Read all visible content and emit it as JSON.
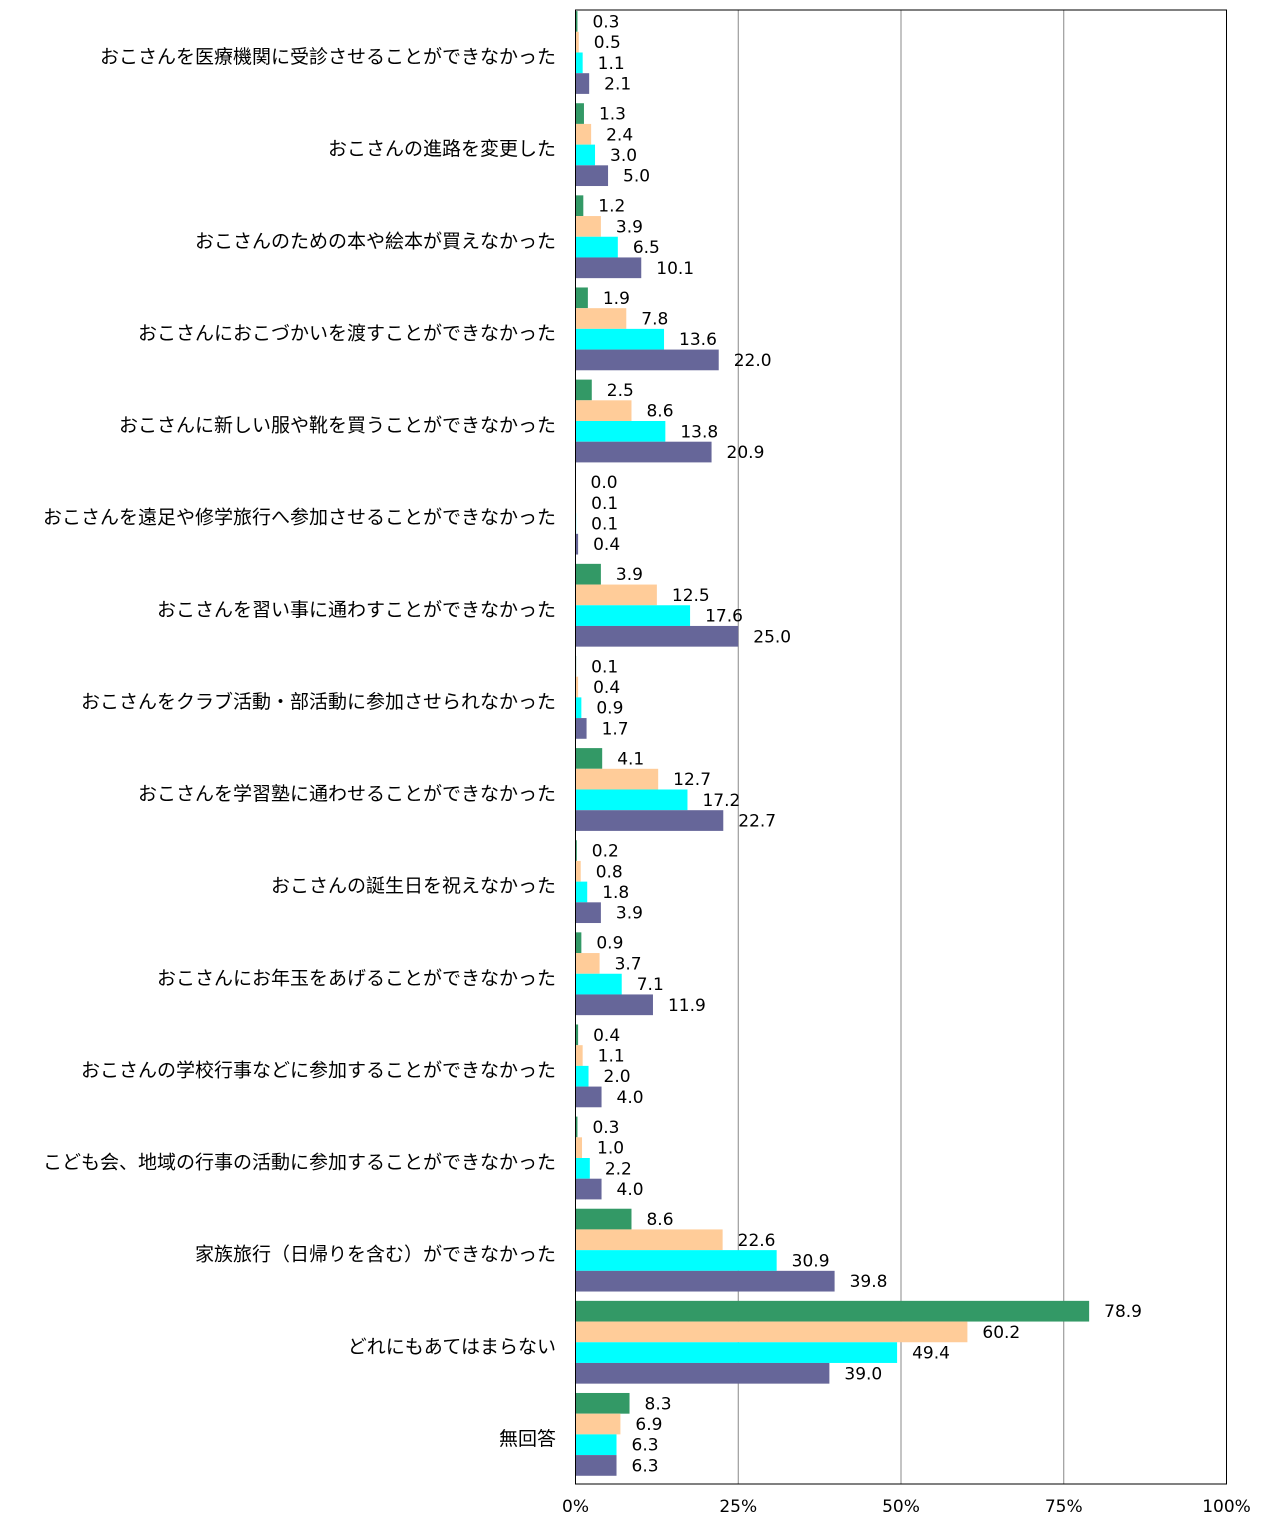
{
  "chart_data": {
    "type": "bar",
    "orientation": "horizontal",
    "categories": [
      "おこさんを医療機関に受診させることができなかった",
      "おこさんの進路を変更した",
      "おこさんのための本や絵本が買えなかった",
      "おこさんにおこづかいを渡すことができなかった",
      "おこさんに新しい服や靴を買うことができなかった",
      "おこさんを遠足や修学旅行へ参加させることができなかった",
      "おこさんを習い事に通わすことができなかった",
      "おこさんをクラブ活動・部活動に参加させられなかった",
      "おこさんを学習塾に通わせることができなかった",
      "おこさんの誕生日を祝えなかった",
      "おこさんにお年玉をあげることができなかった",
      "おこさんの学校行事などに参加することができなかった",
      "こども会、地域の行事の活動に参加することができなかった",
      "家族旅行（日帰りを含む）ができなかった",
      "どれにもあてはまらない",
      "無回答"
    ],
    "series": [
      {
        "color": "#339966",
        "values": [
          0.3,
          1.3,
          1.2,
          1.9,
          2.5,
          0.0,
          3.9,
          0.1,
          4.1,
          0.2,
          0.9,
          0.4,
          0.3,
          8.6,
          78.9,
          8.3
        ],
        "labels": [
          "0.3",
          "1.3",
          "1.2",
          "1.9",
          "2.5",
          "0.0",
          "3.9",
          "0.1",
          "4.1",
          "0.2",
          "0.9",
          "0.4",
          "0.3",
          "8.6",
          "78.9",
          "8.3"
        ]
      },
      {
        "color": "#FFCC99",
        "values": [
          0.5,
          2.4,
          3.9,
          7.8,
          8.6,
          0.1,
          12.5,
          0.4,
          12.7,
          0.8,
          3.7,
          1.1,
          1.0,
          22.6,
          60.2,
          6.9
        ],
        "labels": [
          "0.5",
          "2.4",
          "3.9",
          "7.8",
          "8.6",
          "0.1",
          "12.5",
          "0.4",
          "12.7",
          "0.8",
          "3.7",
          "1.1",
          "1.0",
          "22.6",
          "60.2",
          "6.9"
        ]
      },
      {
        "color": "#00FFFF",
        "values": [
          1.1,
          3.0,
          6.5,
          13.6,
          13.8,
          0.1,
          17.6,
          0.9,
          17.2,
          1.8,
          7.1,
          2.0,
          2.2,
          30.9,
          49.4,
          6.3
        ],
        "labels": [
          "1.1",
          "3.0",
          "6.5",
          "13.6",
          "13.8",
          "0.1",
          "17.6",
          "0.9",
          "17.2",
          "1.8",
          "7.1",
          "2.0",
          "2.2",
          "30.9",
          "49.4",
          "6.3"
        ]
      },
      {
        "color": "#666699",
        "values": [
          2.1,
          5.0,
          10.1,
          22.0,
          20.9,
          0.4,
          25.0,
          1.7,
          22.7,
          3.9,
          11.9,
          4.0,
          4.0,
          39.8,
          39.0,
          6.3
        ],
        "labels": [
          "2.1",
          "5.0",
          "10.1",
          "22.0",
          "20.9",
          "0.4",
          "25.0",
          "1.7",
          "22.7",
          "3.9",
          "11.9",
          "4.0",
          "4.0",
          "39.8",
          "39.0",
          "6.3"
        ]
      }
    ],
    "x_ticks": [
      "0%",
      "25%",
      "50%",
      "75%",
      "100%"
    ],
    "xlim": [
      0,
      100
    ],
    "grid": true,
    "legend": "none",
    "title": "",
    "xlabel": "",
    "ylabel": ""
  }
}
